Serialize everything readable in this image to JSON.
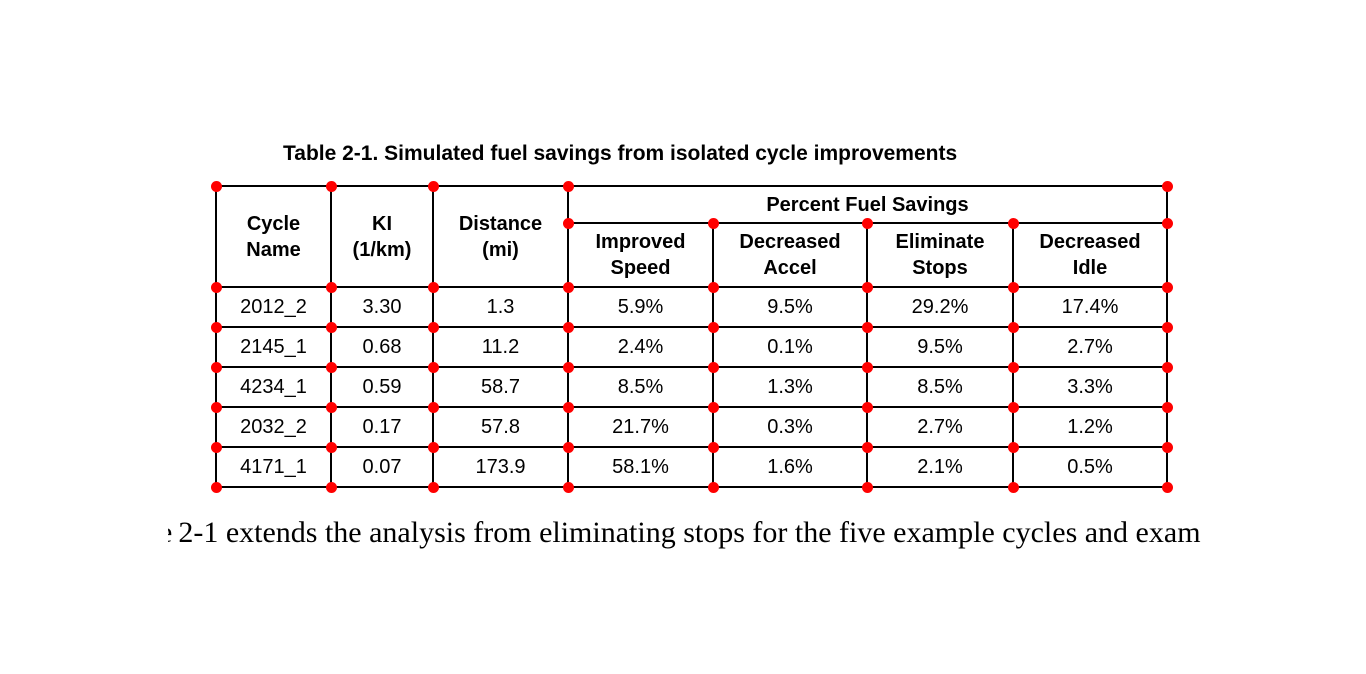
{
  "caption": "Table 2-1. Simulated fuel savings from isolated cycle improvements",
  "table": {
    "group_header": "Percent Fuel Savings",
    "columns": [
      "Cycle\nName",
      "KI\n(1/km)",
      "Distance\n(mi)",
      "Improved\nSpeed",
      "Decreased\nAccel",
      "Eliminate\nStops",
      "Decreased\nIdle"
    ],
    "rows": [
      [
        "2012_2",
        "3.30",
        "1.3",
        "5.9%",
        "9.5%",
        "29.2%",
        "17.4%"
      ],
      [
        "2145_1",
        "0.68",
        "11.2",
        "2.4%",
        "0.1%",
        "9.5%",
        "2.7%"
      ],
      [
        "4234_1",
        "0.59",
        "58.7",
        "8.5%",
        "1.3%",
        "8.5%",
        "3.3%"
      ],
      [
        "2032_2",
        "0.17",
        "57.8",
        "21.7%",
        "0.3%",
        "2.7%",
        "1.2%"
      ],
      [
        "4171_1",
        "0.07",
        "173.9",
        "58.1%",
        "1.6%",
        "2.1%",
        "0.5%"
      ]
    ]
  },
  "annotation": {
    "dot_color": "#ff0000"
  },
  "body": {
    "fragment": "e",
    "text": "2-1 extends the analysis from eliminating stops for the five example cycles and exam"
  }
}
